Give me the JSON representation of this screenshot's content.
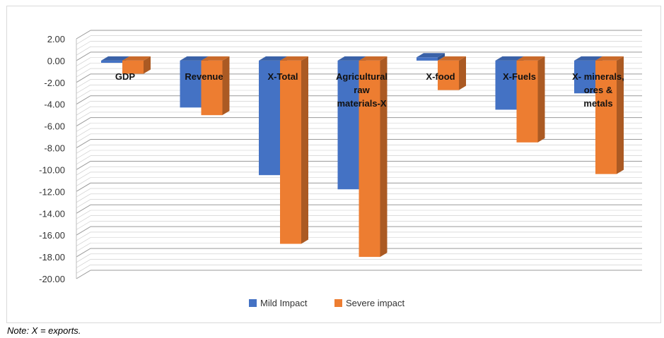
{
  "chart_data": {
    "type": "bar",
    "style": "3d-clustered-column",
    "categories": [
      [
        "GDP"
      ],
      [
        "Revenue"
      ],
      [
        "X-Total"
      ],
      [
        "Agricultural",
        "raw",
        "materials-X"
      ],
      [
        "X-food"
      ],
      [
        "X-Fuels"
      ],
      [
        "X- minerals,",
        "ores &",
        "metals"
      ]
    ],
    "series": [
      {
        "name": "Mild Impact",
        "color": "#4472c4",
        "values": [
          -0.2,
          -4.3,
          -10.5,
          -11.8,
          0.3,
          -4.5,
          -3.0
        ]
      },
      {
        "name": "Severe impact",
        "color": "#ed7d31",
        "values": [
          -1.2,
          -5.0,
          -16.8,
          -18.0,
          -2.7,
          -7.5,
          -10.4
        ]
      }
    ],
    "yticks": [
      "2.00",
      "0.00",
      "-2.00",
      "-4.00",
      "-6.00",
      "-8.00",
      "-10.00",
      "-12.00",
      "-14.00",
      "-16.00",
      "-18.00",
      "-20.00"
    ],
    "ylim": [
      -20,
      2
    ],
    "grid": true,
    "legend": "bottom"
  },
  "note": "Note: X = exports."
}
